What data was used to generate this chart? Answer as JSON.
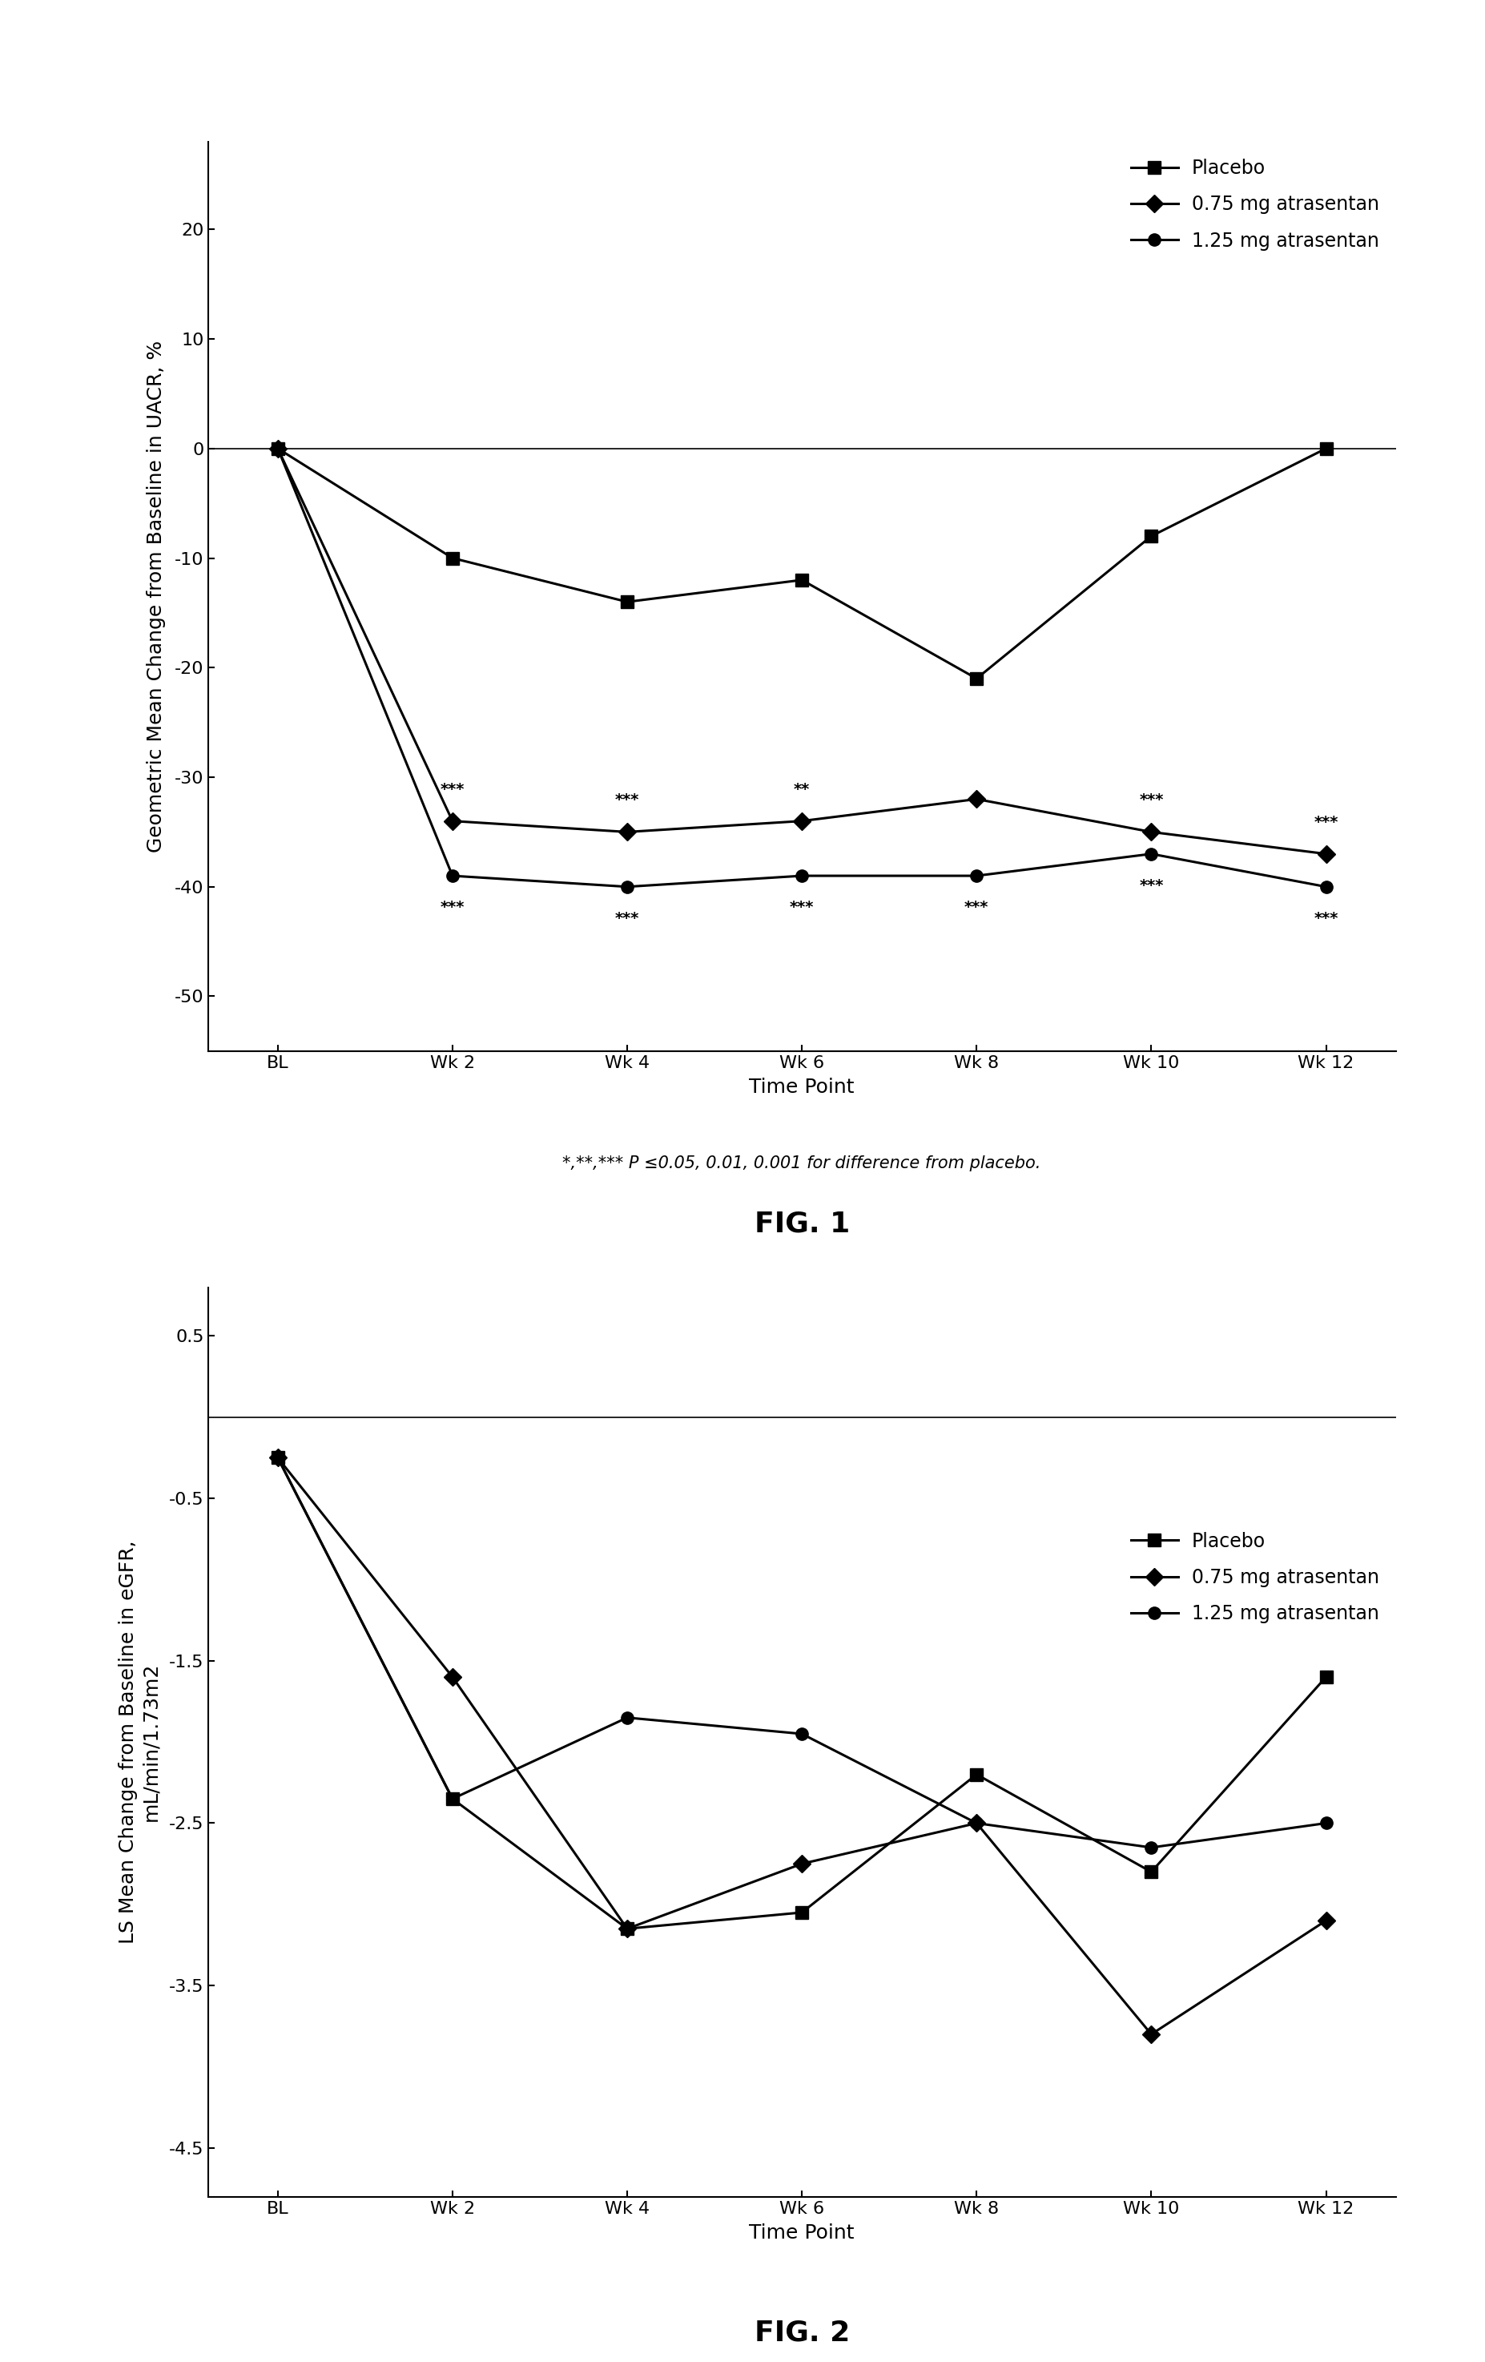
{
  "fig1": {
    "title": "FIG. 1",
    "ylabel": "Geometric Mean Change from Baseline in UACR, %",
    "xlabel": "Time Point",
    "footnote": "*,**,*** P ≤0.05, 0.01, 0.001 for difference from placebo.",
    "xtick_labels": [
      "BL",
      "Wk 2",
      "Wk 4",
      "Wk 6",
      "Wk 8",
      "Wk 10",
      "Wk 12"
    ],
    "x_values": [
      0,
      1,
      2,
      3,
      4,
      5,
      6
    ],
    "ylim": [
      -55,
      28
    ],
    "yticks": [
      -50,
      -40,
      -30,
      -20,
      -10,
      0,
      10,
      20
    ],
    "placebo": [
      0,
      -10,
      -14,
      -12,
      -21,
      -8,
      0
    ],
    "dose075": [
      0,
      -34,
      -35,
      -34,
      -32,
      -35,
      -37
    ],
    "dose125": [
      0,
      -39,
      -40,
      -39,
      -39,
      -37,
      -40
    ],
    "annotations_075": [
      "***",
      "***",
      "**",
      "",
      "***",
      "***"
    ],
    "annotations_125": [
      "***",
      "***",
      "***",
      "***",
      "***",
      "***"
    ],
    "legend_labels": [
      "Placebo",
      "0.75 mg atrasentan",
      "1.25 mg atrasentan"
    ]
  },
  "fig2": {
    "title": "FIG. 2",
    "ylabel": "LS Mean Change from Baseline in eGFR,\nmL/min/1.73m2",
    "xlabel": "Time Point",
    "xtick_labels": [
      "BL",
      "Wk 2",
      "Wk 4",
      "Wk 6",
      "Wk 8",
      "Wk 10",
      "Wk 12"
    ],
    "x_values": [
      0,
      1,
      2,
      3,
      4,
      5,
      6
    ],
    "ylim": [
      -4.8,
      0.8
    ],
    "yticks": [
      -4.5,
      -3.5,
      -2.5,
      -1.5,
      -0.5,
      0.5
    ],
    "placebo": [
      -0.25,
      -2.35,
      -3.15,
      -3.05,
      -2.2,
      -2.8,
      -1.6
    ],
    "dose075": [
      -0.25,
      -1.6,
      -3.15,
      -2.75,
      -2.5,
      -3.8,
      -3.1
    ],
    "dose125": [
      -0.25,
      -2.35,
      -1.85,
      -1.95,
      -2.5,
      -2.65,
      -2.5
    ],
    "legend_labels": [
      "Placebo",
      "0.75 mg atrasentan",
      "1.25 mg atrasentan"
    ]
  },
  "line_color": "#000000",
  "background_color": "#ffffff",
  "fontsize_title": 26,
  "fontsize_labels": 18,
  "fontsize_ticks": 16,
  "fontsize_legend": 17,
  "fontsize_footnote": 15,
  "fontsize_annot": 14,
  "linewidth": 2.2,
  "markersize": 11
}
